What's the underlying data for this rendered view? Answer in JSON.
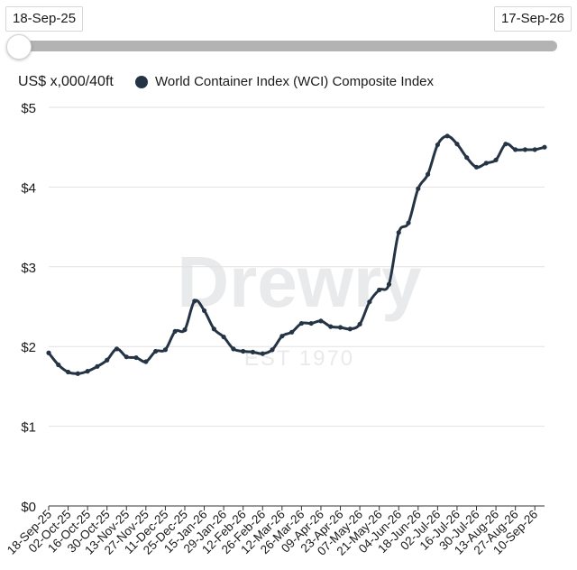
{
  "slider": {
    "start_date": "18-Sep-25",
    "end_date": "17-Sep-26"
  },
  "unit_label": "US$ x,000/40ft",
  "legend": {
    "label": "World Container Index (WCI) Composite Index",
    "color": "#253445"
  },
  "watermark": {
    "brand": "Drewry",
    "est": "EST 1970"
  },
  "colors": {
    "line": "#253445",
    "grid": "#e2e2e2",
    "axis": "#333333"
  },
  "chart_data": {
    "type": "line",
    "ylabel": "US$ x,000/40ft",
    "ylim": [
      0,
      5
    ],
    "yticks": [
      "$0",
      "$1",
      "$2",
      "$3",
      "$4",
      "$5"
    ],
    "ytick_values": [
      0,
      1,
      2,
      3,
      4,
      5
    ],
    "xtick_labels": [
      "18-Sep-25",
      "02-Oct-25",
      "16-Oct-25",
      "30-Oct-25",
      "13-Nov-25",
      "27-Nov-25",
      "11-Dec-25",
      "25-Dec-25",
      "15-Jan-26",
      "29-Jan-26",
      "12-Feb-26",
      "26-Feb-26",
      "12-Mar-26",
      "26-Mar-26",
      "09-Apr-26",
      "23-Apr-26",
      "07-May-26",
      "21-May-26",
      "04-Jun-26",
      "18-Jun-26",
      "02-Jul-26",
      "16-Jul-26",
      "30-Jul-26",
      "13-Aug-26",
      "27-Aug-26",
      "10-Sep-26"
    ],
    "series": [
      {
        "name": "World Container Index (WCI) Composite Index",
        "values": [
          1.92,
          1.77,
          1.68,
          1.66,
          1.69,
          1.75,
          1.83,
          1.97,
          1.87,
          1.86,
          1.81,
          1.94,
          1.96,
          2.19,
          2.21,
          2.57,
          2.45,
          2.22,
          2.12,
          1.97,
          1.94,
          1.93,
          1.91,
          1.96,
          2.13,
          2.18,
          2.29,
          2.29,
          2.32,
          2.25,
          2.24,
          2.22,
          2.28,
          2.56,
          2.71,
          2.78,
          3.43,
          3.55,
          3.98,
          4.16,
          4.53,
          4.64,
          4.54,
          4.37,
          4.25,
          4.3,
          4.34,
          4.54,
          4.47,
          4.47,
          4.47,
          4.5
        ]
      }
    ]
  }
}
